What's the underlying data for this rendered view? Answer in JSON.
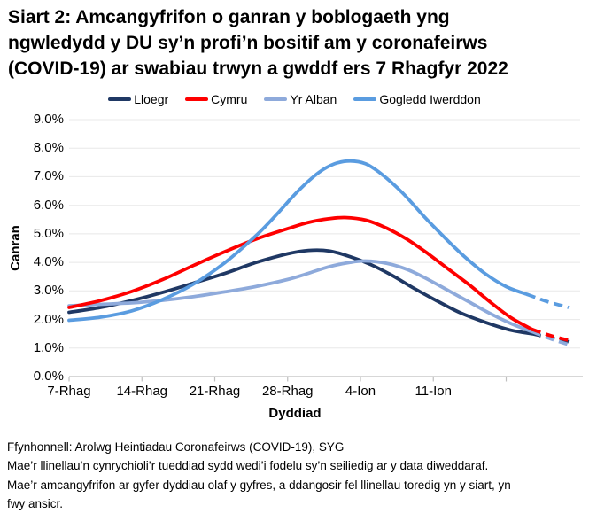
{
  "header": {
    "title": "Siart 2: Amcangyfrifon o ganran y boblogaeth yng ngwledydd y DU sy’n profi’n bositif am y coronafeirws (COVID-19) ar swabiau trwyn a gwddf ers 7 Rhagfyr 2022",
    "title_lines": [
      "Siart 2: Amcangyfrifon o ganran y boblogaeth yng",
      "ngwledydd y DU sy’n profi’n bositif am y coronafeirws",
      "(COVID-19) ar swabiau trwyn a gwddf ers 7 Rhagfyr 2022"
    ]
  },
  "chart_data": {
    "type": "line",
    "xlabel": "Dyddiad",
    "ylabel": "Canran",
    "ylim": [
      0,
      9
    ],
    "grid": "horizontal only",
    "legend_position": "top center",
    "colors": {
      "grid": "#e8e8e8",
      "axis": "#bfbfbf",
      "text": "#000000"
    },
    "y_ticks": [
      {
        "v": 0,
        "label": "0.0%"
      },
      {
        "v": 1,
        "label": "1.0%"
      },
      {
        "v": 2,
        "label": "2.0%"
      },
      {
        "v": 3,
        "label": "3.0%"
      },
      {
        "v": 4,
        "label": "4.0%"
      },
      {
        "v": 5,
        "label": "5.0%"
      },
      {
        "v": 6,
        "label": "6.0%"
      },
      {
        "v": 7,
        "label": "7.0%"
      },
      {
        "v": 8,
        "label": "8.0%"
      },
      {
        "v": 9,
        "label": "9.0%"
      }
    ],
    "x_ticks": [
      {
        "day": 0,
        "label": "7-Rhag"
      },
      {
        "day": 7,
        "label": "14-Rhag"
      },
      {
        "day": 14,
        "label": "21-Rhag"
      },
      {
        "day": 21,
        "label": "28-Rhag"
      },
      {
        "day": 28,
        "label": "4-Ion"
      },
      {
        "day": 35,
        "label": "11-Ion"
      },
      {
        "day": 42,
        "label": ""
      }
    ],
    "draw_order": [
      0,
      2,
      1,
      3
    ],
    "dashed_note": "values for the last days of the series are shown as dashed lines",
    "series": [
      {
        "name": "Lloegr",
        "color": "#1f3864",
        "solid": [
          [
            0,
            2.25
          ],
          [
            3,
            2.42
          ],
          [
            6,
            2.66
          ],
          [
            9,
            2.95
          ],
          [
            12,
            3.28
          ],
          [
            15,
            3.62
          ],
          [
            18,
            4.0
          ],
          [
            21,
            4.3
          ],
          [
            23,
            4.42
          ],
          [
            25,
            4.4
          ],
          [
            27,
            4.2
          ],
          [
            29,
            3.92
          ],
          [
            31,
            3.55
          ],
          [
            33,
            3.12
          ],
          [
            35,
            2.72
          ],
          [
            37.5,
            2.25
          ],
          [
            40,
            1.9
          ],
          [
            42.5,
            1.62
          ],
          [
            44.5,
            1.5
          ]
        ],
        "dashed": [
          [
            44.5,
            1.5
          ],
          [
            46.2,
            1.36
          ],
          [
            48,
            1.22
          ]
        ]
      },
      {
        "name": "Cymru",
        "color": "#fe0000",
        "solid": [
          [
            0,
            2.42
          ],
          [
            3,
            2.66
          ],
          [
            6,
            2.98
          ],
          [
            9,
            3.4
          ],
          [
            12,
            3.9
          ],
          [
            15,
            4.38
          ],
          [
            18,
            4.82
          ],
          [
            21,
            5.18
          ],
          [
            23,
            5.4
          ],
          [
            25,
            5.53
          ],
          [
            26.5,
            5.57
          ],
          [
            28.5,
            5.48
          ],
          [
            30.5,
            5.2
          ],
          [
            32.5,
            4.8
          ],
          [
            34.5,
            4.3
          ],
          [
            36.5,
            3.75
          ],
          [
            38.5,
            3.2
          ],
          [
            40.5,
            2.6
          ],
          [
            42.5,
            2.05
          ],
          [
            44.5,
            1.65
          ]
        ],
        "dashed": [
          [
            44.5,
            1.65
          ],
          [
            46.2,
            1.44
          ],
          [
            48,
            1.27
          ]
        ]
      },
      {
        "name": "Yr Alban",
        "color": "#8eaadb",
        "solid": [
          [
            0,
            2.48
          ],
          [
            3,
            2.53
          ],
          [
            6,
            2.58
          ],
          [
            9,
            2.67
          ],
          [
            12,
            2.8
          ],
          [
            15,
            2.97
          ],
          [
            18,
            3.16
          ],
          [
            21,
            3.4
          ],
          [
            23,
            3.62
          ],
          [
            25,
            3.85
          ],
          [
            27,
            4.0
          ],
          [
            28.5,
            4.05
          ],
          [
            30.5,
            3.97
          ],
          [
            32.5,
            3.75
          ],
          [
            34.5,
            3.4
          ],
          [
            36.5,
            3.0
          ],
          [
            38.5,
            2.6
          ],
          [
            40.5,
            2.2
          ],
          [
            42.5,
            1.85
          ],
          [
            44.5,
            1.57
          ]
        ],
        "dashed": [
          [
            44.5,
            1.57
          ],
          [
            46.2,
            1.33
          ],
          [
            48,
            1.12
          ]
        ]
      },
      {
        "name": "Gogledd Iwerddon",
        "color": "#5a9ce0",
        "solid": [
          [
            0,
            1.97
          ],
          [
            3,
            2.08
          ],
          [
            6,
            2.3
          ],
          [
            9,
            2.7
          ],
          [
            12,
            3.25
          ],
          [
            15,
            4.0
          ],
          [
            18,
            4.95
          ],
          [
            20,
            5.7
          ],
          [
            22,
            6.5
          ],
          [
            24,
            7.15
          ],
          [
            25.5,
            7.45
          ],
          [
            27,
            7.55
          ],
          [
            28.5,
            7.45
          ],
          [
            30,
            7.1
          ],
          [
            32,
            6.45
          ],
          [
            34,
            5.65
          ],
          [
            36,
            4.9
          ],
          [
            38,
            4.2
          ],
          [
            40,
            3.6
          ],
          [
            42,
            3.15
          ],
          [
            44,
            2.88
          ]
        ],
        "dashed": [
          [
            44,
            2.88
          ],
          [
            46,
            2.62
          ],
          [
            48,
            2.42
          ]
        ]
      }
    ]
  },
  "footer": {
    "lines": [
      "Ffynhonnell: Arolwg Heintiadau Coronafeirws (COVID-19), SYG",
      "Mae’r llinellau’n cynrychioli’r tueddiad sydd wedi’i fodelu sy’n seiliedig ar y data diweddaraf.",
      "Mae’r amcangyfrifon ar gyfer dyddiau olaf y gyfres, a ddangosir fel llinellau toredig yn y siart, yn",
      "fwy ansicr."
    ]
  }
}
